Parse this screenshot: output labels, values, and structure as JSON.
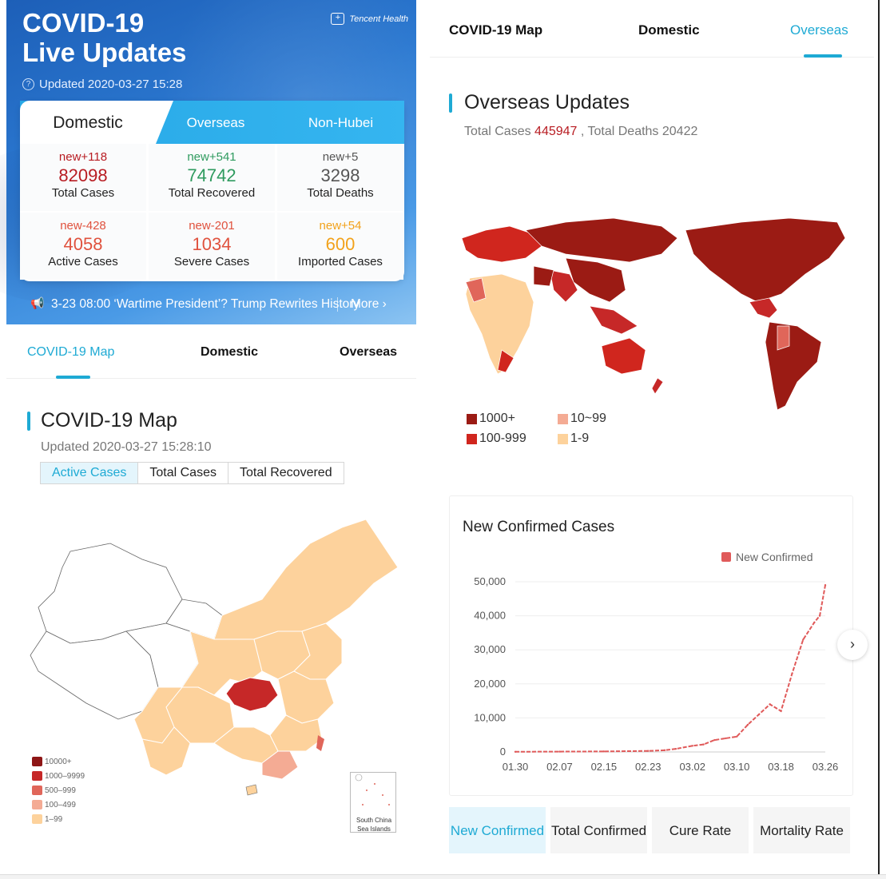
{
  "left": {
    "hero": {
      "title_line1": "COVID-19",
      "title_line2": "Live Updates",
      "brand": "Tencent Health",
      "updated": "Updated 2020-03-27 15:28"
    },
    "card": {
      "tabs": [
        "Domestic",
        "Overseas",
        "Non-Hubei"
      ],
      "stats": [
        {
          "new": "new+118",
          "value": "82098",
          "label": "Total Cases",
          "color": "#b81c22"
        },
        {
          "new": "new+541",
          "value": "74742",
          "label": "Total Recovered",
          "color": "#2f9b5f"
        },
        {
          "new": "new+5",
          "value": "3298",
          "label": "Total Deaths",
          "color": "#555555"
        },
        {
          "new": "new-428",
          "value": "4058",
          "label": "Active Cases",
          "color": "#e0523e"
        },
        {
          "new": "new-201",
          "value": "1034",
          "label": "Severe Cases",
          "color": "#e0523e"
        },
        {
          "new": "new+54",
          "value": "600",
          "label": "Imported Cases",
          "color": "#f2a21b"
        }
      ]
    },
    "news": {
      "text": "3-23 08:00 ‘Wartime President’? Trump Rewrites History",
      "more": "More"
    },
    "nav": [
      "COVID-19 Map",
      "Domestic",
      "Overseas"
    ],
    "map_section": {
      "title": "COVID-19 Map",
      "updated": "Updated 2020-03-27 15:28:10",
      "segments": [
        "Active Cases",
        "Total Cases",
        "Total Recovered"
      ],
      "legend": [
        {
          "label": "10000+",
          "color": "#8e1616"
        },
        {
          "label": "1000–9999",
          "color": "#c62828"
        },
        {
          "label": "500–999",
          "color": "#e0665a"
        },
        {
          "label": "100–499",
          "color": "#f4ab94"
        },
        {
          "label": "1–99",
          "color": "#fdd29c"
        }
      ],
      "islands_caption": "South China Sea Islands"
    }
  },
  "right": {
    "nav": [
      "COVID-19 Map",
      "Domestic",
      "Overseas"
    ],
    "overseas": {
      "title": "Overseas Updates",
      "total_cases_prefix": "Total Cases",
      "total_cases": "445947",
      "total_deaths_text": ", Total Deaths 20422"
    },
    "legend": [
      {
        "label": "1000+",
        "color": "#9b1b14"
      },
      {
        "label": "10~99",
        "color": "#f4ab94"
      },
      {
        "label": "100-999",
        "color": "#d0261e"
      },
      {
        "label": "1-9",
        "color": "#fdd29c"
      }
    ],
    "chart_title": "New Confirmed Cases",
    "chart_legend": "New Confirmed",
    "bottom_tabs": [
      "New Confirmed",
      "Total Confirmed",
      "Cure Rate",
      "Mortality Rate"
    ]
  },
  "chart_data": {
    "type": "line",
    "title": "New Confirmed Cases",
    "xlabel": "",
    "ylabel": "",
    "ylim": [
      0,
      50000
    ],
    "yticks": [
      "0",
      "10,000",
      "20,000",
      "30,000",
      "40,000",
      "50,000"
    ],
    "xticks": [
      "01.30",
      "02.07",
      "02.15",
      "02.23",
      "03.02",
      "03.10",
      "03.18",
      "03.26"
    ],
    "series": [
      {
        "name": "New Confirmed",
        "color": "#e05a5a",
        "x": [
          "01.30",
          "02.07",
          "02.15",
          "02.23",
          "02.26",
          "02.28",
          "03.02",
          "03.04",
          "03.06",
          "03.08",
          "03.10",
          "03.12",
          "03.14",
          "03.16",
          "03.18",
          "03.20",
          "03.22",
          "03.24",
          "03.25",
          "03.26"
        ],
        "values": [
          50,
          100,
          150,
          300,
          500,
          900,
          1800,
          2200,
          3500,
          4000,
          4500,
          8000,
          11000,
          14000,
          12000,
          23000,
          33000,
          38000,
          40000,
          49000
        ]
      }
    ]
  }
}
